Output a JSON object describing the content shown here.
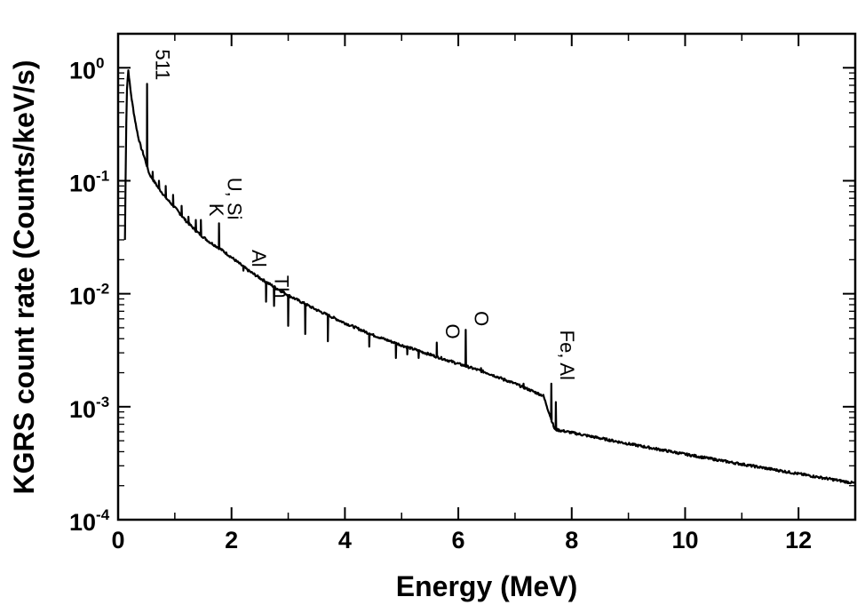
{
  "chart_data": {
    "type": "line",
    "title": "",
    "xlabel": "Energy (MeV)",
    "ylabel": "KGRS count rate (Counts/keV/s)",
    "xlim": [
      0,
      13
    ],
    "ylim": [
      0.0001,
      2
    ],
    "yscale": "log",
    "grid": false,
    "legend": "none",
    "line_color": "#000000",
    "x_ticks": [
      {
        "value": 0,
        "label": "0"
      },
      {
        "value": 2,
        "label": "2"
      },
      {
        "value": 4,
        "label": "4"
      },
      {
        "value": 6,
        "label": "6"
      },
      {
        "value": 8,
        "label": "8"
      },
      {
        "value": 10,
        "label": "10"
      },
      {
        "value": 12,
        "label": "12"
      }
    ],
    "y_ticks": [
      {
        "value": 1,
        "base": "10",
        "exp": "0"
      },
      {
        "value": 0.1,
        "base": "10",
        "exp": "-1"
      },
      {
        "value": 0.01,
        "base": "10",
        "exp": "-2"
      },
      {
        "value": 0.001,
        "base": "10",
        "exp": "-3"
      },
      {
        "value": 0.0001,
        "base": "10",
        "exp": "-4"
      }
    ],
    "continuum": [
      [
        0.12,
        0.03
      ],
      [
        0.15,
        0.6
      ],
      [
        0.18,
        0.95
      ],
      [
        0.22,
        0.62
      ],
      [
        0.26,
        0.45
      ],
      [
        0.3,
        0.34
      ],
      [
        0.35,
        0.25
      ],
      [
        0.4,
        0.2
      ],
      [
        0.45,
        0.17
      ],
      [
        0.55,
        0.115
      ],
      [
        0.7,
        0.088
      ],
      [
        0.85,
        0.07
      ],
      [
        1.0,
        0.058
      ],
      [
        1.2,
        0.044
      ],
      [
        1.4,
        0.035
      ],
      [
        1.6,
        0.029
      ],
      [
        1.8,
        0.025
      ],
      [
        2.0,
        0.021
      ],
      [
        2.3,
        0.016
      ],
      [
        2.6,
        0.0128
      ],
      [
        3.0,
        0.0097
      ],
      [
        3.5,
        0.0072
      ],
      [
        4.0,
        0.0055
      ],
      [
        4.5,
        0.0043
      ],
      [
        5.0,
        0.0035
      ],
      [
        5.5,
        0.0029
      ],
      [
        6.0,
        0.0024
      ],
      [
        6.5,
        0.002
      ],
      [
        7.0,
        0.0016
      ],
      [
        7.5,
        0.00125
      ],
      [
        7.7,
        0.00063
      ],
      [
        8.0,
        0.00059
      ],
      [
        9.0,
        0.00047
      ],
      [
        10.0,
        0.00038
      ],
      [
        11.0,
        0.00031
      ],
      [
        12.0,
        0.000255
      ],
      [
        13.0,
        0.00021
      ]
    ],
    "peaks": [
      {
        "x": 0.511,
        "y": 0.72
      },
      {
        "x": 0.61,
        "y": 0.12
      },
      {
        "x": 0.72,
        "y": 0.1
      },
      {
        "x": 0.84,
        "y": 0.09
      },
      {
        "x": 0.97,
        "y": 0.075
      },
      {
        "x": 1.12,
        "y": 0.06
      },
      {
        "x": 1.24,
        "y": 0.048
      },
      {
        "x": 1.37,
        "y": 0.045
      },
      {
        "x": 1.46,
        "y": 0.045
      },
      {
        "x": 1.78,
        "y": 0.042
      },
      {
        "x": 2.21,
        "y": 0.016
      },
      {
        "x": 2.61,
        "y": 0.0085
      },
      {
        "x": 2.75,
        "y": 0.0078
      },
      {
        "x": 3.0,
        "y": 0.0052
      },
      {
        "x": 3.3,
        "y": 0.0044
      },
      {
        "x": 3.7,
        "y": 0.0038
      },
      {
        "x": 4.43,
        "y": 0.0034
      },
      {
        "x": 4.9,
        "y": 0.0027
      },
      {
        "x": 5.1,
        "y": 0.0029
      },
      {
        "x": 5.3,
        "y": 0.0027
      },
      {
        "x": 5.62,
        "y": 0.0037
      },
      {
        "x": 5.9,
        "y": 0.0025
      },
      {
        "x": 6.13,
        "y": 0.0048
      },
      {
        "x": 6.4,
        "y": 0.0022
      },
      {
        "x": 6.8,
        "y": 0.0017
      },
      {
        "x": 7.15,
        "y": 0.0016
      },
      {
        "x": 7.64,
        "y": 0.0016
      },
      {
        "x": 7.72,
        "y": 0.0011
      }
    ],
    "annotations": [
      {
        "text": "511",
        "x": 0.511,
        "y": 0.72
      },
      {
        "text": "K",
        "x": 1.46,
        "y": 0.045
      },
      {
        "text": "U, Si",
        "x": 1.78,
        "y": 0.042
      },
      {
        "text": "Al",
        "x": 2.21,
        "y": 0.016
      },
      {
        "text": "Th",
        "x": 2.61,
        "y": 0.0085
      },
      {
        "text": "O",
        "x": 5.62,
        "y": 0.0037
      },
      {
        "text": "O",
        "x": 6.13,
        "y": 0.0048
      },
      {
        "text": "Fe, Al",
        "x": 7.64,
        "y": 0.0016
      }
    ]
  }
}
